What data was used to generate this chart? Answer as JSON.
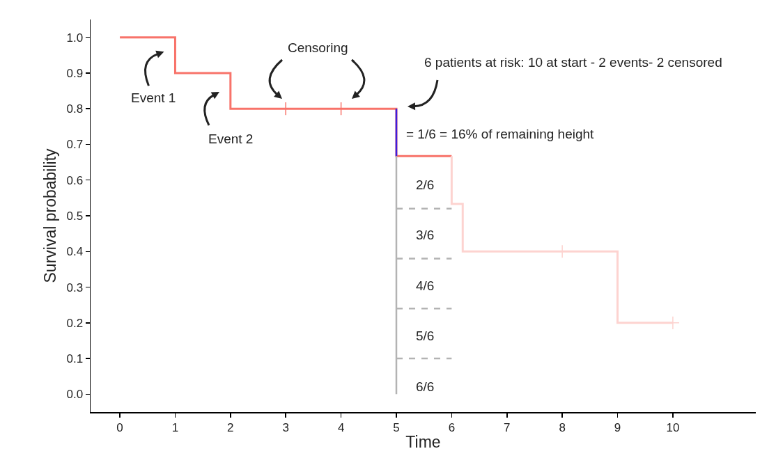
{
  "chart_data": {
    "type": "step",
    "xlabel": "Time",
    "ylabel": "Survival probability",
    "xlim": [
      -0.53,
      11.5
    ],
    "xticks": [
      0,
      1,
      2,
      3,
      4,
      5,
      6,
      7,
      8,
      9,
      10
    ],
    "ylim": [
      -0.05,
      1.05
    ],
    "yticks": [
      {
        "value": 0,
        "label": "0.0"
      },
      0.1,
      0.2,
      0.3,
      0.4,
      0.5,
      0.6,
      0.7,
      0.8,
      0.9,
      {
        "value": 1,
        "label": "1.0"
      }
    ],
    "grid": false,
    "series": [
      {
        "color": "#f8736a",
        "x": [
          0,
          1,
          2,
          5,
          6
        ],
        "values": [
          1,
          0.9,
          0.8,
          0.667,
          0.667
        ]
      },
      {
        "color": "#fdd3d0",
        "x": [
          6,
          6,
          6.2,
          9,
          10
        ],
        "values": [
          0.667,
          0.533,
          0.4,
          0.2,
          0.2
        ]
      },
      {
        "type": "scatter",
        "marker": "cross",
        "color": "#f8736a",
        "x": [
          3,
          4
        ],
        "values": [
          0.8,
          0.8
        ]
      },
      {
        "type": "scatter",
        "marker": "cross",
        "color": "#fdd3d0",
        "x": [
          8,
          10
        ],
        "values": [
          0.4,
          0.2
        ]
      },
      {
        "type": "line",
        "color": "#3a1ee0",
        "x": [
          5,
          5
        ],
        "values": [
          0.8,
          0.667
        ]
      },
      {
        "type": "line",
        "color": "#b3b3b3",
        "x": [
          5,
          5
        ],
        "values": [
          0,
          0.667
        ]
      },
      {
        "type": "line",
        "line_style": "dashed",
        "color": "#b3b3b3",
        "x": [
          5,
          6
        ],
        "values": [
          0.52,
          0.52
        ]
      },
      {
        "type": "line",
        "line_style": "dashed",
        "color": "#b3b3b3",
        "x": [
          5,
          6
        ],
        "values": [
          0.38,
          0.38
        ]
      },
      {
        "type": "line",
        "line_style": "dashed",
        "color": "#b3b3b3",
        "x": [
          5,
          6
        ],
        "values": [
          0.24,
          0.24
        ]
      },
      {
        "type": "line",
        "line_style": "dashed",
        "color": "#b3b3b3",
        "x": [
          5,
          6
        ],
        "values": [
          0.1,
          0.1
        ]
      }
    ],
    "annotations": [
      {
        "text": "Event 1",
        "x": 1,
        "y": 0.95
      },
      "Event 2",
      "Censoring",
      "6 patients at risk: 10 at start - 2 events- 2 censored",
      {
        "text": "= 1/6 = 16% of remaining height",
        "x": 5,
        "y": 0.73
      },
      "2/6",
      "3/6",
      "4/6",
      "5/6",
      "6/6"
    ]
  }
}
